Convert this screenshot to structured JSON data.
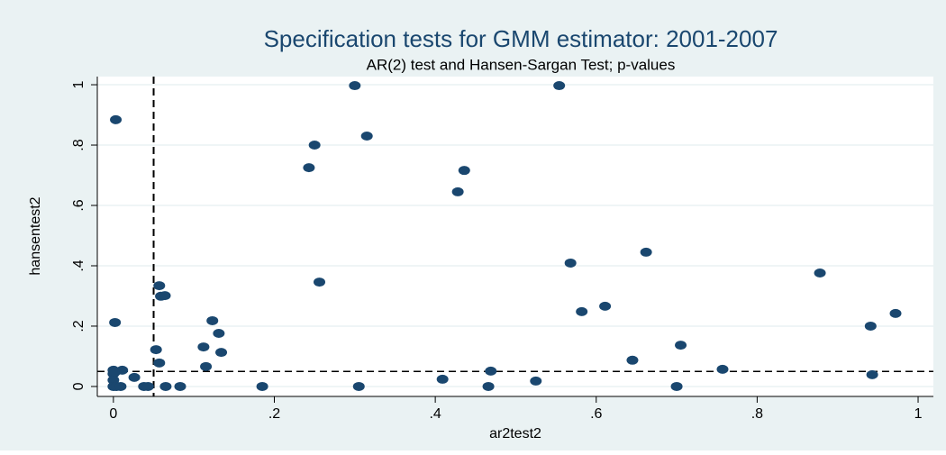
{
  "chart_data": {
    "type": "scatter",
    "title": "Specification tests for GMM estimator: 2001-2007",
    "subtitle": "AR(2) test and Hansen-Sargan Test; p-values",
    "x_label": "ar2test2",
    "y_label": "hansentest2",
    "color": "#1a476f",
    "x": [
      0.003,
      0.002,
      0,
      0,
      0,
      0,
      0.004,
      0.009,
      0.011,
      0.002,
      0.026,
      0.038,
      0.043,
      0.053,
      0.057,
      0.057,
      0.059,
      0.064,
      0.065,
      0.083,
      0.112,
      0.115,
      0.123,
      0.131,
      0.134,
      0.185,
      0.243,
      0.25,
      0.256,
      0.3,
      0.305,
      0.315,
      0.409,
      0.428,
      0.436,
      0.466,
      0.469,
      0.525,
      0.554,
      0.568,
      0.582,
      0.611,
      0.645,
      0.662,
      0.7,
      0.705,
      0.757,
      0.878,
      0.941,
      0.943,
      0.972
    ],
    "y": [
      0.884,
      0.212,
      0.054,
      0.042,
      0.021,
      0,
      0,
      0,
      0.054,
      0.048,
      0.03,
      0,
      0,
      0.122,
      0.078,
      0.334,
      0.299,
      0.301,
      0,
      0,
      0.131,
      0.066,
      0.218,
      0.176,
      0.113,
      0,
      0.725,
      0.8,
      0.346,
      0.997,
      0,
      0.83,
      0.024,
      0.645,
      0.716,
      0,
      0.051,
      0.018,
      0.997,
      0.409,
      0.248,
      0.266,
      0.087,
      0.445,
      0,
      0.137,
      0.057,
      0.376,
      0.2,
      0.039,
      0.242
    ],
    "xlim": [
      -0.02,
      1.019
    ],
    "ylim": [
      -0.033,
      1.027
    ],
    "xticks": [
      0,
      {
        "value": 0.2,
        "label": ".2"
      },
      {
        "value": 0.4,
        "label": ".4"
      },
      {
        "value": 0.6,
        "label": ".6"
      },
      {
        "value": 0.8,
        "label": ".8"
      },
      1
    ],
    "yticks": [
      0,
      {
        "value": 0.2,
        "label": ".2"
      },
      {
        "value": 0.4,
        "label": ".4"
      },
      {
        "value": 0.6,
        "label": ".6"
      },
      {
        "value": 0.8,
        "label": ".8"
      },
      1
    ],
    "ygrid": true,
    "xline": 0.05,
    "yline": 0.05
  }
}
